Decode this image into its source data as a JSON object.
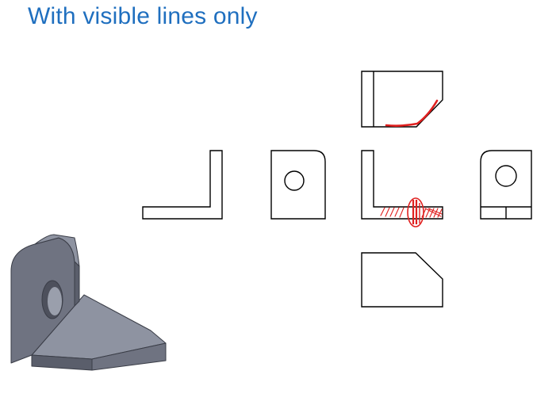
{
  "slide": {
    "title": "With visible lines only"
  },
  "colors": {
    "title": "#1f6fbf",
    "line": "#000000",
    "annotation": "#e0201f",
    "part_front": "#6f7381",
    "part_top": "#8e93a1",
    "part_side": "#5a5e6b",
    "part_edge": "#3a3d47"
  },
  "views": [
    {
      "name": "top-view"
    },
    {
      "name": "right-side-view"
    },
    {
      "name": "rear-view"
    },
    {
      "name": "front-view"
    },
    {
      "name": "left-side-view"
    },
    {
      "name": "bottom-view"
    },
    {
      "name": "isometric-view"
    }
  ],
  "annotations": [
    {
      "name": "missing-curve-mark"
    },
    {
      "name": "missing-edge-hatching"
    },
    {
      "name": "missing-edge-circle"
    }
  ]
}
